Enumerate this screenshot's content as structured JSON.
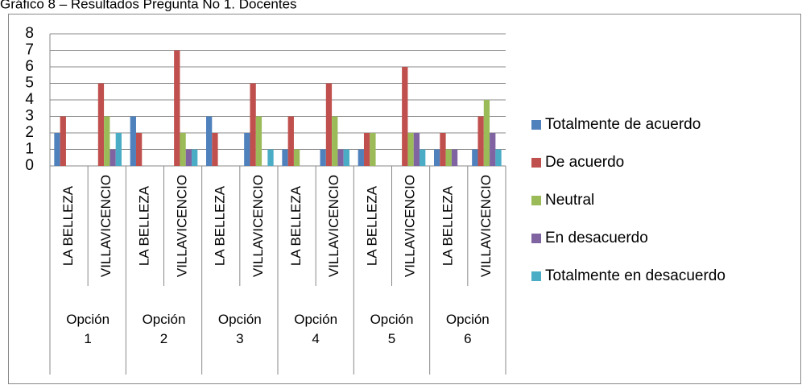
{
  "chart_data": {
    "type": "bar",
    "title": "Gráfico 8 – Resultados Pregunta No 1. Docentes",
    "categories": [
      "LA BELLEZA",
      "VILLAVICENCIO",
      "LA BELLEZA",
      "VILLAVICENCIO",
      "LA BELLEZA",
      "VILLAVICENCIO",
      "LA BELLEZA",
      "VILLAVICENCIO",
      "LA BELLEZA",
      "VILLAVICENCIO",
      "LA BELLEZA",
      "VILLAVICENCIO"
    ],
    "groups": [
      "Opción 1",
      "Opción 2",
      "Opción 3",
      "Opción 4",
      "Opción 5",
      "Opción 6"
    ],
    "series": [
      {
        "name": "Totalmente de acuerdo",
        "color": "#4f81bd",
        "values": [
          2,
          0,
          3,
          0,
          3,
          2,
          1,
          1,
          1,
          0,
          1,
          1
        ]
      },
      {
        "name": "De acuerdo",
        "color": "#c0504d",
        "values": [
          3,
          5,
          2,
          7,
          2,
          5,
          3,
          5,
          2,
          6,
          2,
          3
        ]
      },
      {
        "name": "Neutral",
        "color": "#9bbb59",
        "values": [
          0,
          3,
          0,
          2,
          0,
          3,
          1,
          3,
          2,
          2,
          1,
          4
        ]
      },
      {
        "name": "En desacuerdo",
        "color": "#8064a2",
        "values": [
          0,
          1,
          0,
          1,
          0,
          0,
          0,
          1,
          0,
          2,
          1,
          2
        ]
      },
      {
        "name": "Totalmente en desacuerdo",
        "color": "#4bacc6",
        "values": [
          0,
          2,
          0,
          1,
          0,
          1,
          0,
          1,
          0,
          1,
          0,
          1
        ]
      }
    ],
    "ylim": [
      0,
      8
    ],
    "yticks": [
      0,
      1,
      2,
      3,
      4,
      5,
      6,
      7,
      8
    ],
    "grid": true,
    "legend": "right"
  }
}
